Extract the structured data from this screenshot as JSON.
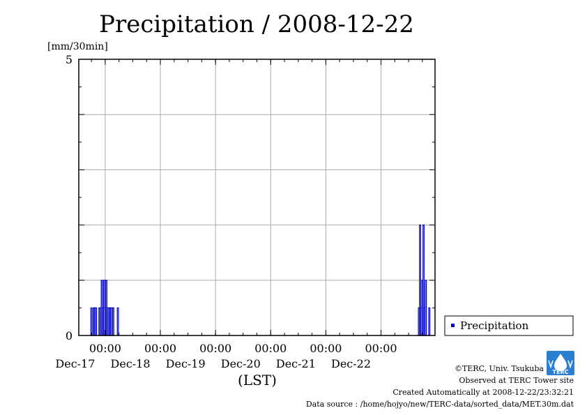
{
  "chart_data": {
    "type": "bar",
    "title": "Precipitation / 2008-12-22",
    "ylabel": "[mm/30min]",
    "xlabel": "(LST)",
    "ylim": [
      0,
      5
    ],
    "y_ticks": [
      "0",
      "5"
    ],
    "x_ticks": [
      {
        "time": "00:00",
        "date": "Dec-17"
      },
      {
        "time": "00:00",
        "date": "Dec-18"
      },
      {
        "time": "00:00",
        "date": "Dec-19"
      },
      {
        "time": "00:00",
        "date": "Dec-20"
      },
      {
        "time": "00:00",
        "date": "Dec-21"
      },
      {
        "time": "00:00",
        "date": "Dec-22"
      }
    ],
    "xlim": [
      "2008-12-16 12:30",
      "2008-12-22 23:30"
    ],
    "grid": true,
    "legend_position": "bottom-right",
    "series": [
      {
        "name": "Precipitation",
        "color": "#0000cc",
        "points": [
          [
            "2008-12-16 18:00",
            0.5
          ],
          [
            "2008-12-16 19:00",
            0.5
          ],
          [
            "2008-12-16 19:30",
            0.5
          ],
          [
            "2008-12-16 20:00",
            0.5
          ],
          [
            "2008-12-16 21:30",
            0.5
          ],
          [
            "2008-12-16 22:00",
            0.5
          ],
          [
            "2008-12-16 22:30",
            1.0
          ],
          [
            "2008-12-16 23:00",
            0.5
          ],
          [
            "2008-12-16 23:30",
            1.0
          ],
          [
            "2008-12-17 00:00",
            0.5
          ],
          [
            "2008-12-17 00:30",
            1.0
          ],
          [
            "2008-12-17 01:00",
            0.5
          ],
          [
            "2008-12-17 01:30",
            0.5
          ],
          [
            "2008-12-17 02:00",
            0.5
          ],
          [
            "2008-12-17 02:30",
            0.5
          ],
          [
            "2008-12-17 03:00",
            0.5
          ],
          [
            "2008-12-17 03:30",
            0.5
          ],
          [
            "2008-12-17 05:30",
            0.5
          ],
          [
            "2008-12-22 16:30",
            0.5
          ],
          [
            "2008-12-22 17:00",
            2.0
          ],
          [
            "2008-12-22 17:30",
            0.5
          ],
          [
            "2008-12-22 18:00",
            1.0
          ],
          [
            "2008-12-22 18:30",
            2.0
          ],
          [
            "2008-12-22 19:00",
            0.5
          ],
          [
            "2008-12-22 19:30",
            1.0
          ],
          [
            "2008-12-22 21:00",
            0.5
          ]
        ]
      }
    ]
  },
  "credits": {
    "copyright": "©TERC, Univ. Tsukuba",
    "observed": "Observed at TERC Tower site",
    "created": "Created Automatically at 2008-12-22/23:32:21",
    "source": "Data source : /home/hojyo/new/TERC-data/sorted_data/MET.30m.dat",
    "logo_text": "TERC"
  }
}
